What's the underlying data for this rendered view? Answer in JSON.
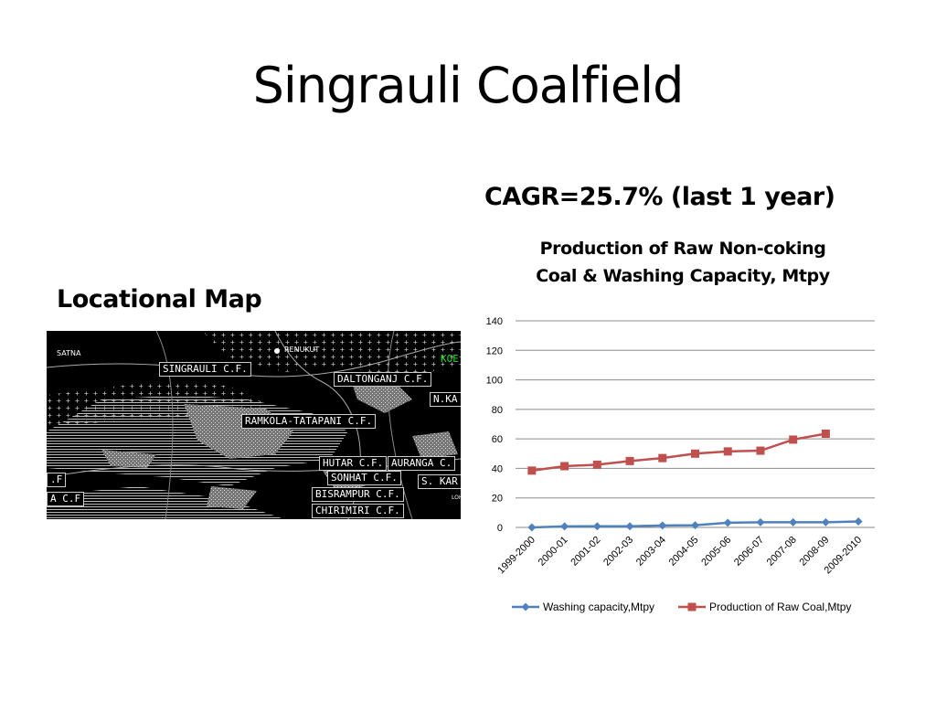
{
  "slide": {
    "title": "Singrauli Coalfield",
    "map_heading": "Locational Map",
    "cagr": "CAGR=25.7% (last 1 year)"
  },
  "map": {
    "labels": {
      "satna": "SATNA",
      "renukut": "RENUKUT",
      "singrauli": "SINGRAULI C.F.",
      "daltonganj": "DALTONGANJ C.F.",
      "nka": "N.KA",
      "ramkola": "RAMKOLA-TATAPANI C.F.",
      "hutar": "HUTAR C.F.",
      "auranga": "AURANGA C.",
      "sonhat": "SONHAT C.F.",
      "skar": "S. KAR",
      "bisrampur": "BISRAMPUR C.F.",
      "chirimiri": "CHIRIMIRI C.F.",
      "ac": "A C.F",
      "f": ".F",
      "koe": "KOE",
      "loh": "LOH"
    }
  },
  "chart_data": {
    "type": "line",
    "title": "Production of Raw Non-coking Coal & Washing Capacity, Mtpy",
    "title_lines": [
      "Production of Raw Non-coking",
      "Coal & Washing Capacity, Mtpy"
    ],
    "categories": [
      "1999-2000",
      "2000-01",
      "2001-02",
      "2002-03",
      "2003-04",
      "2004-05",
      "2005-06",
      "2006-07",
      "2007-08",
      "2008-09",
      "2009-2010"
    ],
    "series": [
      {
        "name": "Washing capacity,Mtpy",
        "color": "#4f81bd",
        "marker": "diamond",
        "values": [
          0,
          0.7,
          0.8,
          0.8,
          1.3,
          1.5,
          3.2,
          3.5,
          3.5,
          3.5,
          4.0
        ]
      },
      {
        "name": "Production of Raw Coal,Mtpy",
        "color": "#c0504d",
        "marker": "square",
        "values": [
          38.5,
          41.5,
          42.5,
          45,
          47,
          50,
          51.5,
          52,
          59.5,
          63.5,
          null
        ]
      }
    ],
    "ylim": [
      0,
      140
    ],
    "yticks": [
      0,
      20,
      40,
      60,
      80,
      100,
      120,
      140
    ],
    "grid": true,
    "legend": "bottom"
  }
}
